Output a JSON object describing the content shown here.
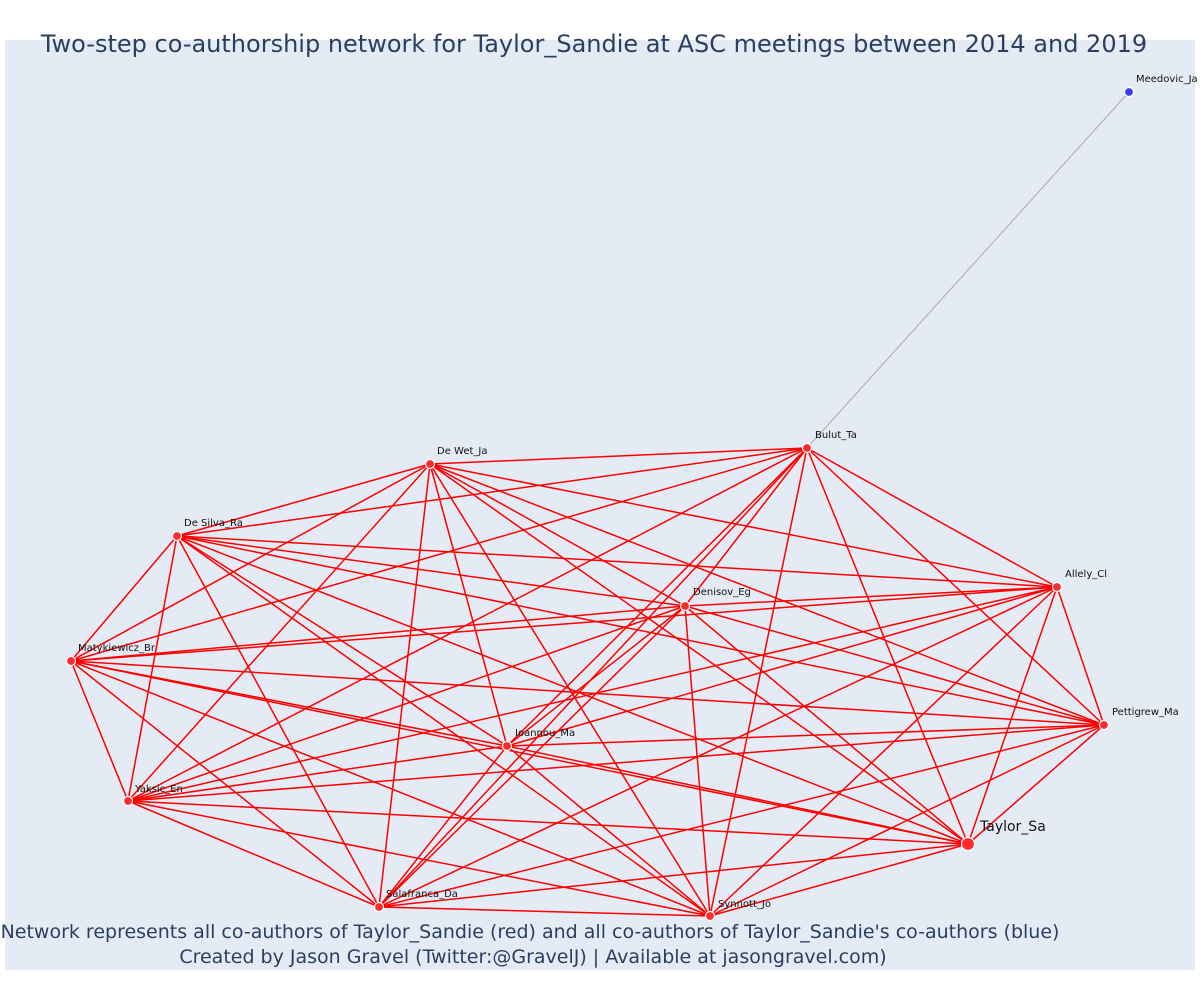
{
  "title": "Two-step co-authorship network for Taylor_Sandie at ASC meetings between 2014 and 2019",
  "caption_line1": "Network represents all co-authors of Taylor_Sandie (red) and all co-authors of Taylor_Sandie's co-authors (blue)",
  "caption_line2": "Created by Jason Gravel (Twitter:@GravelJ) | Available at jasongravel.com)",
  "colors": {
    "first_degree": "#ff0000",
    "second_degree": "#3a3ef0",
    "background": "#e5ebf5",
    "text": "#2a3f5f"
  },
  "nodes": [
    {
      "id": "Taylor_Sa",
      "label": "Taylor_Sa",
      "group": "ego"
    },
    {
      "id": "Bulut_Ta",
      "label": "Bulut_Ta",
      "group": "coauthor"
    },
    {
      "id": "De Wet_Ja",
      "label": "De Wet_Ja",
      "group": "coauthor"
    },
    {
      "id": "De Silva_Ra",
      "label": "De Silva_Ra",
      "group": "coauthor"
    },
    {
      "id": "Matykiewicz_Br",
      "label": "Matykiewicz_Br",
      "group": "coauthor"
    },
    {
      "id": "Yaksic_En",
      "label": "Yaksic_En",
      "group": "coauthor"
    },
    {
      "id": "Salafranca_Da",
      "label": "Salafranca_Da",
      "group": "coauthor"
    },
    {
      "id": "Synnott_Jo",
      "label": "Synnott_Jo",
      "group": "coauthor"
    },
    {
      "id": "Ioannou_Ma",
      "label": "Ioannou_Ma",
      "group": "coauthor"
    },
    {
      "id": "Denisov_Eg",
      "label": "Denisov_Eg",
      "group": "coauthor"
    },
    {
      "id": "Allely_Cl",
      "label": "Allely_Cl",
      "group": "coauthor"
    },
    {
      "id": "Pettigrew_Ma",
      "label": "Pettigrew_Ma",
      "group": "coauthor"
    },
    {
      "id": "Meedovic_Ja",
      "label": "Meedovic_Ja",
      "group": "coauthor-of-coauthor"
    }
  ],
  "edges_note_none": "",
  "red_clique": [
    "Taylor_Sa",
    "Bulut_Ta",
    "De Wet_Ja",
    "De Silva_Ra",
    "Matykiewicz_Br",
    "Yaksic_En",
    "Salafranca_Da",
    "Synnott_Jo",
    "Ioannou_Ma",
    "Denisov_Eg",
    "Allely_Cl",
    "Pettigrew_Ma"
  ],
  "gray_edges": [
    [
      "Bulut_Ta",
      "Meedovic_Ja"
    ]
  ]
}
